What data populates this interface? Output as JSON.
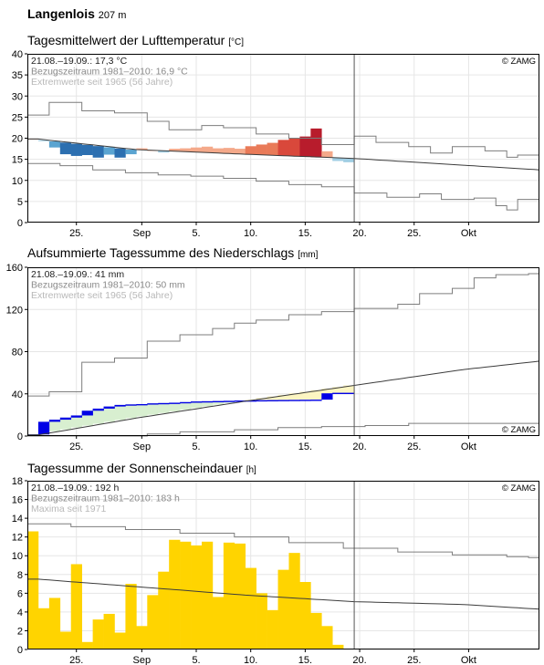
{
  "station": {
    "name": "Langenlois",
    "elevation": "207 m"
  },
  "colors": {
    "grid": "#e6e6e6",
    "frame": "#000000",
    "envelope": "#7d7d7d",
    "normal_line": "#3c3c3c",
    "today_line": "#555555",
    "info_dark": "#222222",
    "info_mid": "#8a8a8a",
    "info_light": "#b8b8b8",
    "temp_warm": [
      "#f4a98a",
      "#e97a58",
      "#d9483b",
      "#b81c2c"
    ],
    "temp_cold": [
      "#9fcde3",
      "#5aa4d1",
      "#2c6fb0"
    ],
    "precip_surplus_edge": "#0000e6",
    "precip_surplus_fill": "#d8efd0",
    "precip_deficit_fill": "#fcf5c2",
    "sun_bar": "#ffd400"
  },
  "panels": [
    {
      "title": "Tagesmittelwert der Lufttemperatur",
      "unit": "[°C]",
      "info": [
        "21.08.–19.09.: 17,3 °C",
        "Bezugszeitraum 1981–2010: 16,9 °C",
        "Extremwerte seit 1965 (56 Jahre)"
      ],
      "copyright": "© ZAMG",
      "y_ticks": [
        "0",
        "5",
        "10",
        "15",
        "20",
        "25",
        "30",
        "35",
        "40"
      ]
    },
    {
      "title": "Aufsummierte Tagessumme des Niederschlags",
      "unit": "[mm]",
      "info": [
        "21.08.–19.09.: 41 mm",
        "Bezugszeitraum 1981–2010: 50 mm",
        "Extremwerte seit 1965 (56 Jahre)"
      ],
      "copyright": "© ZAMG",
      "y_ticks": [
        "0",
        "40",
        "80",
        "120",
        "160"
      ]
    },
    {
      "title": "Tagessumme der Sonnenscheindauer",
      "unit": "[h]",
      "info": [
        "21.08.–19.09.: 192 h",
        "Bezugszeitraum 1981–2010: 183 h",
        "Maxima seit 1971"
      ],
      "copyright": "© ZAMG",
      "y_ticks": [
        "0",
        "2",
        "4",
        "6",
        "8",
        "10",
        "12",
        "14",
        "16",
        "18"
      ]
    }
  ],
  "x_tick_labels": [
    {
      "day": 5,
      "label": "25."
    },
    {
      "day": 11,
      "label": "Sep"
    },
    {
      "day": 16,
      "label": "5."
    },
    {
      "day": 21,
      "label": "10."
    },
    {
      "day": 26,
      "label": "15."
    },
    {
      "day": 31,
      "label": "20."
    },
    {
      "day": 36,
      "label": "25."
    },
    {
      "day": 41,
      "label": "Okt"
    }
  ],
  "chart_data": [
    {
      "type": "area",
      "title": "Tagesmittelwert der Lufttemperatur",
      "ylabel": "°C",
      "ylim": [
        0,
        40
      ],
      "x_axis": "day index, 1 = 20.08. (20.08.–24.10.)",
      "x_range": [
        1,
        47
      ],
      "current_day": 31,
      "grid": true,
      "normal": {
        "x": [
          1,
          10,
          20,
          30,
          40,
          47
        ],
        "y": [
          19.8,
          17.3,
          16.2,
          15.2,
          13.6,
          12.5
        ]
      },
      "max_extreme": [
        [
          1,
          25.5
        ],
        [
          3,
          28.5
        ],
        [
          6,
          26.5
        ],
        [
          9,
          26
        ],
        [
          12,
          24
        ],
        [
          14,
          22
        ],
        [
          17,
          23
        ],
        [
          19,
          22.5
        ],
        [
          22,
          21
        ],
        [
          25,
          20
        ],
        [
          28,
          18.5
        ],
        [
          31,
          20.5
        ],
        [
          33,
          19
        ],
        [
          36,
          18
        ],
        [
          38,
          16.5
        ],
        [
          40,
          18
        ],
        [
          43,
          17
        ],
        [
          45,
          15.5
        ],
        [
          46,
          16
        ],
        [
          47,
          16
        ]
      ],
      "min_extreme": [
        [
          1,
          14
        ],
        [
          4,
          13.5
        ],
        [
          7,
          12.5
        ],
        [
          10,
          11.8
        ],
        [
          13,
          11.3
        ],
        [
          16,
          11
        ],
        [
          19,
          10.5
        ],
        [
          22,
          9.8
        ],
        [
          25,
          9
        ],
        [
          28,
          8.5
        ],
        [
          31,
          7
        ],
        [
          34,
          6
        ],
        [
          37,
          6.8
        ],
        [
          39,
          5.5
        ],
        [
          42,
          5.8
        ],
        [
          44,
          4
        ],
        [
          45,
          3
        ],
        [
          46,
          5.5
        ],
        [
          47,
          5.5
        ]
      ],
      "series": [
        {
          "x": [
            1,
            2,
            3,
            4,
            5,
            6,
            7,
            8,
            9,
            10,
            11,
            12,
            13,
            14,
            15,
            16,
            17,
            18,
            19,
            20,
            21,
            22,
            23,
            24,
            25,
            26,
            27,
            28,
            29,
            30
          ],
          "y": [
            19.8,
            19.3,
            17.8,
            16.2,
            15.8,
            16.0,
            15.4,
            16.1,
            15.4,
            16.2,
            17.6,
            17.1,
            16.6,
            17.5,
            17.6,
            17.8,
            18.0,
            17.6,
            17.7,
            17.5,
            18.1,
            18.5,
            18.9,
            19.6,
            20.1,
            20.4,
            22.3,
            16.9,
            14.6,
            14.3
          ]
        }
      ]
    },
    {
      "type": "area",
      "title": "Aufsummierte Tagessumme des Niederschlags",
      "ylabel": "mm",
      "ylim": [
        0,
        160
      ],
      "x_axis": "day index, 1 = 20.08. (20.08.–24.10.)",
      "x_range": [
        1,
        47
      ],
      "current_day": 31,
      "grid": true,
      "normal": {
        "x": [
          1,
          10,
          20,
          30,
          40,
          47
        ],
        "y": [
          1,
          17,
          33,
          48,
          63,
          71
        ]
      },
      "max_extreme": [
        [
          1,
          38
        ],
        [
          3,
          42
        ],
        [
          6,
          70
        ],
        [
          9,
          74
        ],
        [
          12,
          90
        ],
        [
          15,
          96
        ],
        [
          18,
          102
        ],
        [
          20,
          107
        ],
        [
          22,
          110
        ],
        [
          25,
          115
        ],
        [
          28,
          118
        ],
        [
          31,
          121
        ],
        [
          35,
          125
        ],
        [
          37,
          135
        ],
        [
          40,
          140
        ],
        [
          42,
          150
        ],
        [
          44,
          153
        ],
        [
          47,
          154
        ]
      ],
      "min_extreme": [
        [
          1,
          0
        ],
        [
          9,
          0
        ],
        [
          12,
          2
        ],
        [
          15,
          4
        ],
        [
          20,
          6
        ],
        [
          24,
          8
        ],
        [
          28,
          9
        ],
        [
          32,
          10
        ],
        [
          34,
          10
        ],
        [
          36,
          12
        ],
        [
          40,
          12
        ],
        [
          47,
          12
        ]
      ],
      "series": [
        {
          "x": [
            1,
            2,
            3,
            4,
            5,
            6,
            7,
            8,
            9,
            10,
            11,
            12,
            13,
            14,
            15,
            16,
            17,
            18,
            19,
            20,
            21,
            22,
            23,
            24,
            25,
            26,
            27,
            28,
            29,
            30
          ],
          "y": [
            1.5,
            13.5,
            15.5,
            17.5,
            19.5,
            24,
            26,
            28,
            29.5,
            30,
            30.3,
            31,
            31.3,
            31.6,
            32.2,
            32.8,
            33,
            33.2,
            33.4,
            33.7,
            33.8,
            34,
            34.1,
            34.2,
            34.3,
            34.4,
            34.5,
            40.5,
            41,
            41
          ]
        }
      ]
    },
    {
      "type": "bar",
      "title": "Tagessumme der Sonnenscheindauer",
      "ylabel": "h",
      "ylim": [
        0,
        18
      ],
      "x_axis": "day index, 1 = 20.08. (20.08.–24.10.)",
      "x_range": [
        1,
        47
      ],
      "current_day": 31,
      "grid": true,
      "normal": {
        "x": [
          1,
          10,
          20,
          30,
          40,
          47
        ],
        "y": [
          7.5,
          6.7,
          5.8,
          5.1,
          4.8,
          4.3
        ]
      },
      "max_extreme": [
        [
          1,
          13.4
        ],
        [
          5,
          13.1
        ],
        [
          10,
          12.8
        ],
        [
          15,
          12.4
        ],
        [
          20,
          12.0
        ],
        [
          25,
          11.4
        ],
        [
          30,
          10.8
        ],
        [
          35,
          10.4
        ],
        [
          40,
          10.1
        ],
        [
          45,
          9.9
        ],
        [
          47,
          9.8
        ]
      ],
      "series": [
        {
          "x": [
            1,
            2,
            3,
            4,
            5,
            6,
            7,
            8,
            9,
            10,
            11,
            12,
            13,
            14,
            15,
            16,
            17,
            18,
            19,
            20,
            21,
            22,
            23,
            24,
            25,
            26,
            27,
            28,
            29,
            30
          ],
          "y": [
            12.6,
            4.4,
            5.5,
            1.9,
            9.1,
            0.8,
            3.2,
            3.8,
            1.8,
            7.0,
            2.5,
            5.8,
            8.3,
            11.7,
            11.5,
            11.1,
            11.5,
            5.6,
            11.4,
            11.3,
            8.7,
            6.0,
            4.2,
            8.5,
            10.3,
            7.2,
            3.9,
            2.5,
            0.5,
            0.0
          ]
        }
      ]
    }
  ]
}
